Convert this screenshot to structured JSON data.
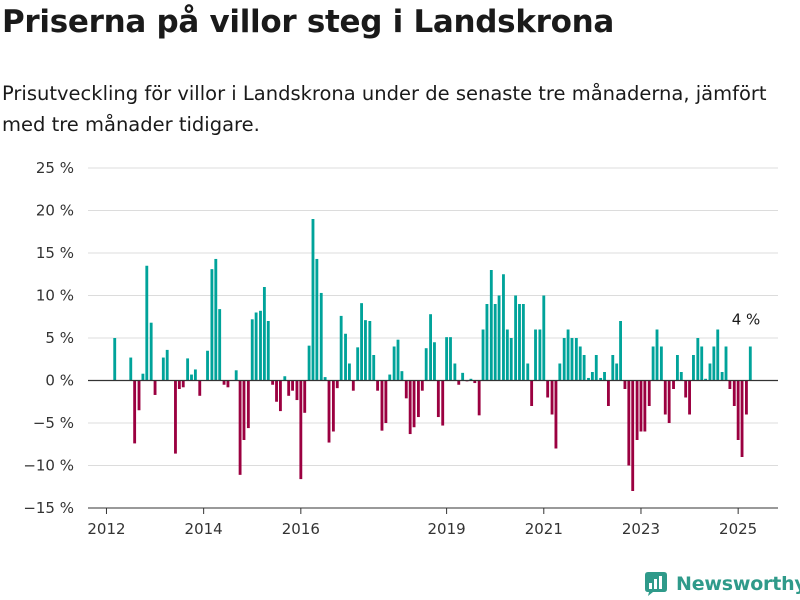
{
  "header": {
    "title": "Priserna på villor steg i Landskrona",
    "subtitle": "Prisutveckling för villor i Landskrona under de senaste tre månaderna, jämfört med tre månader tidigare."
  },
  "brand": {
    "name": "Newsworthy",
    "color": "#2f9a8a"
  },
  "colors": {
    "positive": "#00a39a",
    "negative": "#9b0040",
    "grid": "#dcdcdc",
    "axis": "#333333"
  },
  "chart_data": {
    "type": "bar",
    "x_range": [
      2011.62,
      2025.82
    ],
    "ylim": [
      -15,
      25
    ],
    "y_ticks": [
      {
        "value": 25,
        "label": "25 %"
      },
      {
        "value": 20,
        "label": "20 %"
      },
      {
        "value": 15,
        "label": "15 %"
      },
      {
        "value": 10,
        "label": "10 %"
      },
      {
        "value": 5,
        "label": "5 %"
      },
      {
        "value": 0,
        "label": "0 %"
      },
      {
        "value": -5,
        "label": "−5 %"
      },
      {
        "value": -10,
        "label": "−10 %"
      },
      {
        "value": -15,
        "label": "−15 %"
      }
    ],
    "x_ticks": [
      {
        "value": 2012,
        "label": "2012"
      },
      {
        "value": 2014,
        "label": "2014"
      },
      {
        "value": 2016,
        "label": "2016"
      },
      {
        "value": 2019,
        "label": "2019"
      },
      {
        "value": 2021,
        "label": "2021"
      },
      {
        "value": 2023,
        "label": "2023"
      },
      {
        "value": 2025,
        "label": "2025"
      }
    ],
    "grid": true,
    "annotation": {
      "x": 2025.12,
      "value": 4,
      "label": "4 %"
    },
    "bars": [
      {
        "x": 2012.17,
        "value": 5.0
      },
      {
        "x": 2012.5,
        "value": 2.7
      },
      {
        "x": 2012.58,
        "value": -7.4
      },
      {
        "x": 2012.67,
        "value": -3.5
      },
      {
        "x": 2012.75,
        "value": 0.8
      },
      {
        "x": 2012.83,
        "value": 13.5
      },
      {
        "x": 2012.92,
        "value": 6.8
      },
      {
        "x": 2013.0,
        "value": -1.7
      },
      {
        "x": 2013.17,
        "value": 2.7
      },
      {
        "x": 2013.25,
        "value": 3.6
      },
      {
        "x": 2013.42,
        "value": -8.6
      },
      {
        "x": 2013.5,
        "value": -1.0
      },
      {
        "x": 2013.58,
        "value": -0.8
      },
      {
        "x": 2013.67,
        "value": 2.6
      },
      {
        "x": 2013.75,
        "value": 0.7
      },
      {
        "x": 2013.83,
        "value": 1.3
      },
      {
        "x": 2013.92,
        "value": -1.8
      },
      {
        "x": 2014.08,
        "value": 3.5
      },
      {
        "x": 2014.17,
        "value": 13.1
      },
      {
        "x": 2014.25,
        "value": 14.3
      },
      {
        "x": 2014.33,
        "value": 8.4
      },
      {
        "x": 2014.42,
        "value": -0.5
      },
      {
        "x": 2014.5,
        "value": -0.8
      },
      {
        "x": 2014.67,
        "value": 1.2
      },
      {
        "x": 2014.75,
        "value": -11.1
      },
      {
        "x": 2014.83,
        "value": -7.0
      },
      {
        "x": 2014.92,
        "value": -5.6
      },
      {
        "x": 2015.0,
        "value": 7.2
      },
      {
        "x": 2015.08,
        "value": 8.0
      },
      {
        "x": 2015.17,
        "value": 8.2
      },
      {
        "x": 2015.25,
        "value": 11.0
      },
      {
        "x": 2015.33,
        "value": 7.0
      },
      {
        "x": 2015.42,
        "value": -0.5
      },
      {
        "x": 2015.5,
        "value": -2.5
      },
      {
        "x": 2015.58,
        "value": -3.6
      },
      {
        "x": 2015.67,
        "value": 0.5
      },
      {
        "x": 2015.75,
        "value": -1.8
      },
      {
        "x": 2015.83,
        "value": -1.2
      },
      {
        "x": 2015.92,
        "value": -2.3
      },
      {
        "x": 2016.0,
        "value": -11.6
      },
      {
        "x": 2016.08,
        "value": -3.8
      },
      {
        "x": 2016.17,
        "value": 4.1
      },
      {
        "x": 2016.25,
        "value": 19.0
      },
      {
        "x": 2016.33,
        "value": 14.3
      },
      {
        "x": 2016.42,
        "value": 10.3
      },
      {
        "x": 2016.5,
        "value": 0.4
      },
      {
        "x": 2016.58,
        "value": -7.3
      },
      {
        "x": 2016.67,
        "value": -6.0
      },
      {
        "x": 2016.75,
        "value": -0.9
      },
      {
        "x": 2016.83,
        "value": 7.6
      },
      {
        "x": 2016.92,
        "value": 5.5
      },
      {
        "x": 2017.0,
        "value": 2.0
      },
      {
        "x": 2017.08,
        "value": -1.2
      },
      {
        "x": 2017.17,
        "value": 3.9
      },
      {
        "x": 2017.25,
        "value": 9.1
      },
      {
        "x": 2017.33,
        "value": 7.1
      },
      {
        "x": 2017.42,
        "value": 7.0
      },
      {
        "x": 2017.5,
        "value": 3.0
      },
      {
        "x": 2017.58,
        "value": -1.2
      },
      {
        "x": 2017.67,
        "value": -5.9
      },
      {
        "x": 2017.75,
        "value": -5.0
      },
      {
        "x": 2017.83,
        "value": 0.7
      },
      {
        "x": 2017.92,
        "value": 4.0
      },
      {
        "x": 2018.0,
        "value": 4.8
      },
      {
        "x": 2018.08,
        "value": 1.1
      },
      {
        "x": 2018.17,
        "value": -2.1
      },
      {
        "x": 2018.25,
        "value": -6.3
      },
      {
        "x": 2018.33,
        "value": -5.5
      },
      {
        "x": 2018.42,
        "value": -4.3
      },
      {
        "x": 2018.5,
        "value": -1.2
      },
      {
        "x": 2018.58,
        "value": 3.8
      },
      {
        "x": 2018.67,
        "value": 7.8
      },
      {
        "x": 2018.75,
        "value": 4.5
      },
      {
        "x": 2018.83,
        "value": -4.3
      },
      {
        "x": 2018.92,
        "value": -5.3
      },
      {
        "x": 2019.0,
        "value": 5.1
      },
      {
        "x": 2019.08,
        "value": 5.1
      },
      {
        "x": 2019.17,
        "value": 2.0
      },
      {
        "x": 2019.25,
        "value": -0.5
      },
      {
        "x": 2019.33,
        "value": 0.9
      },
      {
        "x": 2019.42,
        "value": -0.1
      },
      {
        "x": 2019.5,
        "value": 0.2
      },
      {
        "x": 2019.58,
        "value": -0.3
      },
      {
        "x": 2019.67,
        "value": -4.1
      },
      {
        "x": 2019.75,
        "value": 6.0
      },
      {
        "x": 2019.83,
        "value": 9.0
      },
      {
        "x": 2019.92,
        "value": 13.0
      },
      {
        "x": 2020.0,
        "value": 9.0
      },
      {
        "x": 2020.08,
        "value": 10.0
      },
      {
        "x": 2020.17,
        "value": 12.5
      },
      {
        "x": 2020.25,
        "value": 6.0
      },
      {
        "x": 2020.33,
        "value": 5.0
      },
      {
        "x": 2020.42,
        "value": 10.0
      },
      {
        "x": 2020.5,
        "value": 9.0
      },
      {
        "x": 2020.58,
        "value": 9.0
      },
      {
        "x": 2020.67,
        "value": 2.0
      },
      {
        "x": 2020.75,
        "value": -3.0
      },
      {
        "x": 2020.83,
        "value": 6.0
      },
      {
        "x": 2020.92,
        "value": 6.0
      },
      {
        "x": 2021.0,
        "value": 10.0
      },
      {
        "x": 2021.08,
        "value": -2.0
      },
      {
        "x": 2021.17,
        "value": -4.0
      },
      {
        "x": 2021.25,
        "value": -8.0
      },
      {
        "x": 2021.33,
        "value": 2.0
      },
      {
        "x": 2021.42,
        "value": 5.0
      },
      {
        "x": 2021.5,
        "value": 6.0
      },
      {
        "x": 2021.58,
        "value": 5.0
      },
      {
        "x": 2021.67,
        "value": 5.0
      },
      {
        "x": 2021.75,
        "value": 4.0
      },
      {
        "x": 2021.83,
        "value": 3.0
      },
      {
        "x": 2021.92,
        "value": 0.3
      },
      {
        "x": 2022.0,
        "value": 1.0
      },
      {
        "x": 2022.08,
        "value": 3.0
      },
      {
        "x": 2022.17,
        "value": 0.3
      },
      {
        "x": 2022.25,
        "value": 1.0
      },
      {
        "x": 2022.33,
        "value": -3.0
      },
      {
        "x": 2022.42,
        "value": 3.0
      },
      {
        "x": 2022.5,
        "value": 2.0
      },
      {
        "x": 2022.58,
        "value": 7.0
      },
      {
        "x": 2022.67,
        "value": -1.0
      },
      {
        "x": 2022.75,
        "value": -10.0
      },
      {
        "x": 2022.83,
        "value": -13.0
      },
      {
        "x": 2022.92,
        "value": -7.0
      },
      {
        "x": 2023.0,
        "value": -6.0
      },
      {
        "x": 2023.08,
        "value": -6.0
      },
      {
        "x": 2023.17,
        "value": -3.0
      },
      {
        "x": 2023.25,
        "value": 4.0
      },
      {
        "x": 2023.33,
        "value": 6.0
      },
      {
        "x": 2023.42,
        "value": 4.0
      },
      {
        "x": 2023.5,
        "value": -4.0
      },
      {
        "x": 2023.58,
        "value": -5.0
      },
      {
        "x": 2023.67,
        "value": -1.0
      },
      {
        "x": 2023.75,
        "value": 3.0
      },
      {
        "x": 2023.83,
        "value": 1.0
      },
      {
        "x": 2023.92,
        "value": -2.0
      },
      {
        "x": 2024.0,
        "value": -4.0
      },
      {
        "x": 2024.08,
        "value": 3.0
      },
      {
        "x": 2024.17,
        "value": 5.0
      },
      {
        "x": 2024.25,
        "value": 4.0
      },
      {
        "x": 2024.33,
        "value": 0.2
      },
      {
        "x": 2024.42,
        "value": 2.0
      },
      {
        "x": 2024.5,
        "value": 4.0
      },
      {
        "x": 2024.58,
        "value": 6.0
      },
      {
        "x": 2024.67,
        "value": 1.0
      },
      {
        "x": 2024.75,
        "value": 4.0
      },
      {
        "x": 2024.83,
        "value": -1.0
      },
      {
        "x": 2024.92,
        "value": -3.0
      },
      {
        "x": 2025.0,
        "value": -7.0
      },
      {
        "x": 2025.08,
        "value": -9.0
      },
      {
        "x": 2025.17,
        "value": -4.0
      },
      {
        "x": 2025.25,
        "value": 4.0
      }
    ]
  }
}
